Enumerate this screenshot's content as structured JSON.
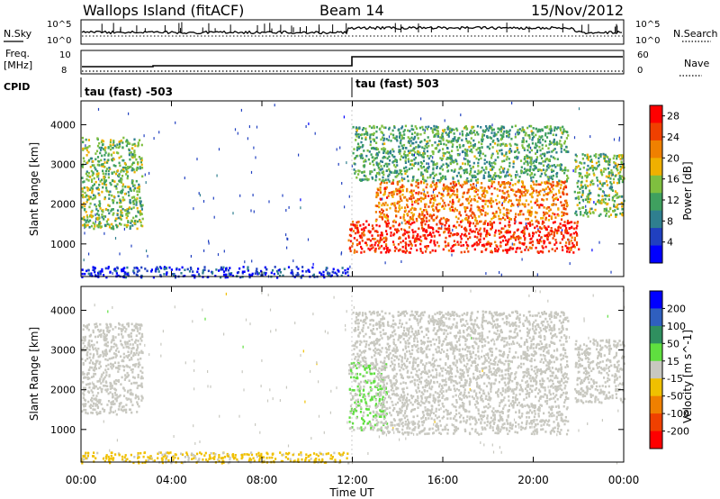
{
  "header": {
    "station": "Wallops Island (fitACF)",
    "beam": "Beam 14",
    "date": "15/Nov/2012"
  },
  "panels": {
    "nsky_label": "N.Sky",
    "nsearch_label": "N.Search",
    "freq_label_line1": "Freq.",
    "freq_label_line2": "[MHz]",
    "nave_label": "Nave",
    "cpid_label": "CPID",
    "noise_ticks": [
      "10^5",
      "10^0"
    ],
    "noise_ticks_right": [
      "10^5",
      "10^0"
    ],
    "freq_ticks": [
      "10",
      "8"
    ],
    "nave_ticks": [
      "60",
      "0"
    ],
    "cpid_segments": [
      "tau (fast) -503",
      "tau (fast) 503"
    ]
  },
  "colors": {
    "power_scale": [
      "#0000ff",
      "#2040c0",
      "#2f7f8f",
      "#3fa05f",
      "#7fbf3f",
      "#f0b000",
      "#f08000",
      "#f04000",
      "#ff0000"
    ],
    "velocity_scale": [
      "#0000ff",
      "#2f5fbf",
      "#2f8f5f",
      "#5fdf3f",
      "#c8c8c0",
      "#f0c000",
      "#f08000",
      "#f04000",
      "#ff0000"
    ]
  },
  "chart_data": [
    {
      "type": "heatmap",
      "title": "",
      "xlabel": "Time UT",
      "ylabel": "Slant Range [km]",
      "x_ticks": [
        "00:00",
        "04:00",
        "08:00",
        "12:00",
        "16:00",
        "20:00",
        "00:00"
      ],
      "xlim_hours": [
        0,
        24
      ],
      "y_ticks": [
        1000,
        2000,
        3000,
        4000
      ],
      "ylim": [
        180,
        4600
      ],
      "colorbar": {
        "label": "Power [dB]",
        "ticks": [
          4,
          8,
          12,
          16,
          20,
          24,
          28
        ],
        "range": [
          0,
          30
        ]
      },
      "regions": [
        {
          "t_start": 0.0,
          "t_end": 2.7,
          "r_low": 1400,
          "r_high": 3700,
          "dominant_value": 14
        },
        {
          "t_start": 0.0,
          "t_end": 11.8,
          "r_low": 180,
          "r_high": 450,
          "dominant_value": 4
        },
        {
          "t_start": 11.8,
          "t_end": 22.0,
          "r_low": 800,
          "r_high": 1600,
          "dominant_value": 27
        },
        {
          "t_start": 13.0,
          "t_end": 21.5,
          "r_low": 1600,
          "r_high": 2600,
          "dominant_value": 22
        },
        {
          "t_start": 12.0,
          "t_end": 21.5,
          "r_low": 2600,
          "r_high": 4000,
          "dominant_value": 12
        },
        {
          "t_start": 21.8,
          "t_end": 24.0,
          "r_low": 1700,
          "r_high": 3300,
          "dominant_value": 14
        }
      ]
    },
    {
      "type": "heatmap",
      "title": "",
      "xlabel": "Time UT",
      "ylabel": "Slant Range [km]",
      "x_ticks": [
        "00:00",
        "04:00",
        "08:00",
        "12:00",
        "16:00",
        "20:00",
        "00:00"
      ],
      "xlim_hours": [
        0,
        24
      ],
      "y_ticks": [
        1000,
        2000,
        3000,
        4000
      ],
      "ylim": [
        180,
        4600
      ],
      "colorbar": {
        "label": "Velocity [m s^-1]",
        "ticks": [
          200,
          100,
          50,
          15,
          -15,
          -50,
          -100,
          -200
        ],
        "range": [
          -250,
          250
        ]
      },
      "regions": [
        {
          "t_start": 0.0,
          "t_end": 2.7,
          "r_low": 1400,
          "r_high": 3700,
          "dominant_value": 0
        },
        {
          "t_start": 0.0,
          "t_end": 11.8,
          "r_low": 180,
          "r_high": 450,
          "dominant_value": -40
        },
        {
          "t_start": 11.8,
          "t_end": 13.5,
          "r_low": 1000,
          "r_high": 2700,
          "dominant_value": 30
        },
        {
          "t_start": 13.0,
          "t_end": 21.5,
          "r_low": 900,
          "r_high": 2600,
          "dominant_value": 0
        },
        {
          "t_start": 12.0,
          "t_end": 21.5,
          "r_low": 2600,
          "r_high": 4000,
          "dominant_value": 0
        },
        {
          "t_start": 21.8,
          "t_end": 24.0,
          "r_low": 1700,
          "r_high": 3300,
          "dominant_value": 0
        }
      ]
    }
  ]
}
